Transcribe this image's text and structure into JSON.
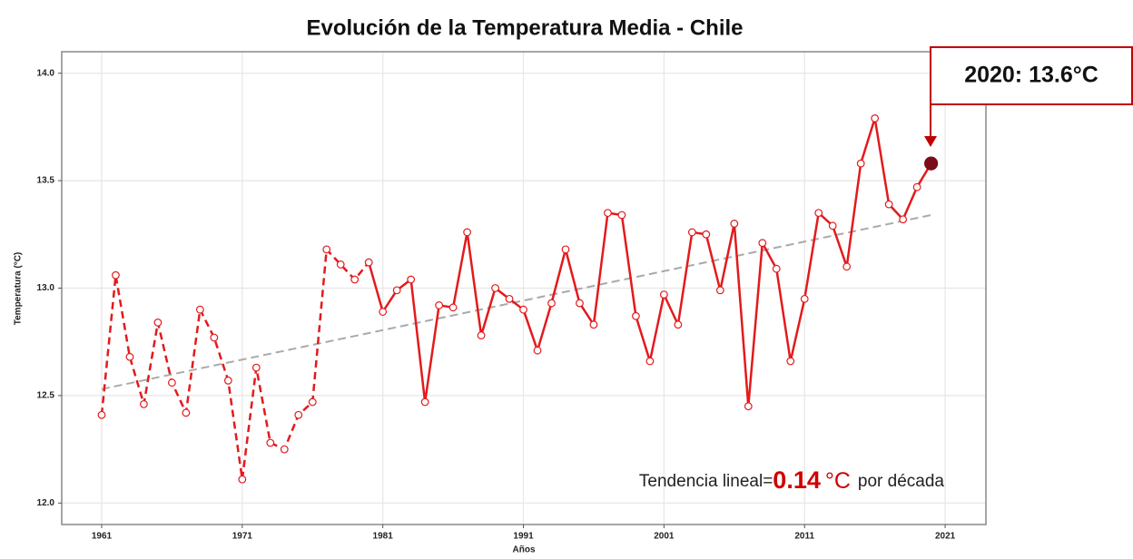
{
  "chart_data": {
    "type": "line",
    "title": "Evolución de la Temperatura Media - Chile",
    "x_label": "Años",
    "y_label": "Temperatura (°C)",
    "x": [
      1961,
      1962,
      1963,
      1964,
      1965,
      1966,
      1967,
      1968,
      1969,
      1970,
      1971,
      1972,
      1973,
      1974,
      1975,
      1976,
      1977,
      1978,
      1979,
      1980,
      1981,
      1982,
      1983,
      1984,
      1985,
      1986,
      1987,
      1988,
      1989,
      1990,
      1991,
      1992,
      1993,
      1994,
      1995,
      1996,
      1997,
      1998,
      1999,
      2000,
      2001,
      2002,
      2003,
      2004,
      2005,
      2006,
      2007,
      2008,
      2009,
      2010,
      2011,
      2012,
      2013,
      2014,
      2015,
      2016,
      2017,
      2018,
      2019,
      2020
    ],
    "series": [
      {
        "color": "#e31a1c",
        "highlight_color": "#7b0c1a",
        "values": [
          12.41,
          13.06,
          12.68,
          12.46,
          12.84,
          12.56,
          12.42,
          12.9,
          12.77,
          12.57,
          12.11,
          12.63,
          12.28,
          12.25,
          12.41,
          12.47,
          13.18,
          13.11,
          13.04,
          13.12,
          12.89,
          12.99,
          13.04,
          12.47,
          12.92,
          12.91,
          13.26,
          12.78,
          13.0,
          12.95,
          12.9,
          12.71,
          12.93,
          13.18,
          12.93,
          12.83,
          13.35,
          13.34,
          12.87,
          12.66,
          12.97,
          12.83,
          13.26,
          13.25,
          12.99,
          13.3,
          12.45,
          13.21,
          13.09,
          12.66,
          12.95,
          13.35,
          13.29,
          13.1,
          13.58,
          13.79,
          13.39,
          13.32,
          13.47,
          13.58
        ]
      }
    ],
    "dash_until": 1980,
    "trend": {
      "x": [
        1961,
        2020
      ],
      "values": [
        12.53,
        13.34
      ],
      "color": "#aaaaaa"
    },
    "callout": "2020: 13.6°C",
    "trend_note": {
      "prefix": "Tendencia lineal=",
      "value": 0.14,
      "unit": "°C",
      "suffix": "por década"
    },
    "xlim": [
      1958.16,
      2023.9
    ],
    "ylim": [
      11.9,
      14.1
    ],
    "xticks": [
      1961,
      1971,
      1981,
      1991,
      2001,
      2011,
      2021
    ],
    "yticks": [
      {
        "value": 12,
        "label": "12.0"
      },
      12.5,
      {
        "value": 13,
        "label": "13.0"
      },
      13.5,
      {
        "value": 14,
        "label": "14.0"
      }
    ],
    "grid": true
  }
}
